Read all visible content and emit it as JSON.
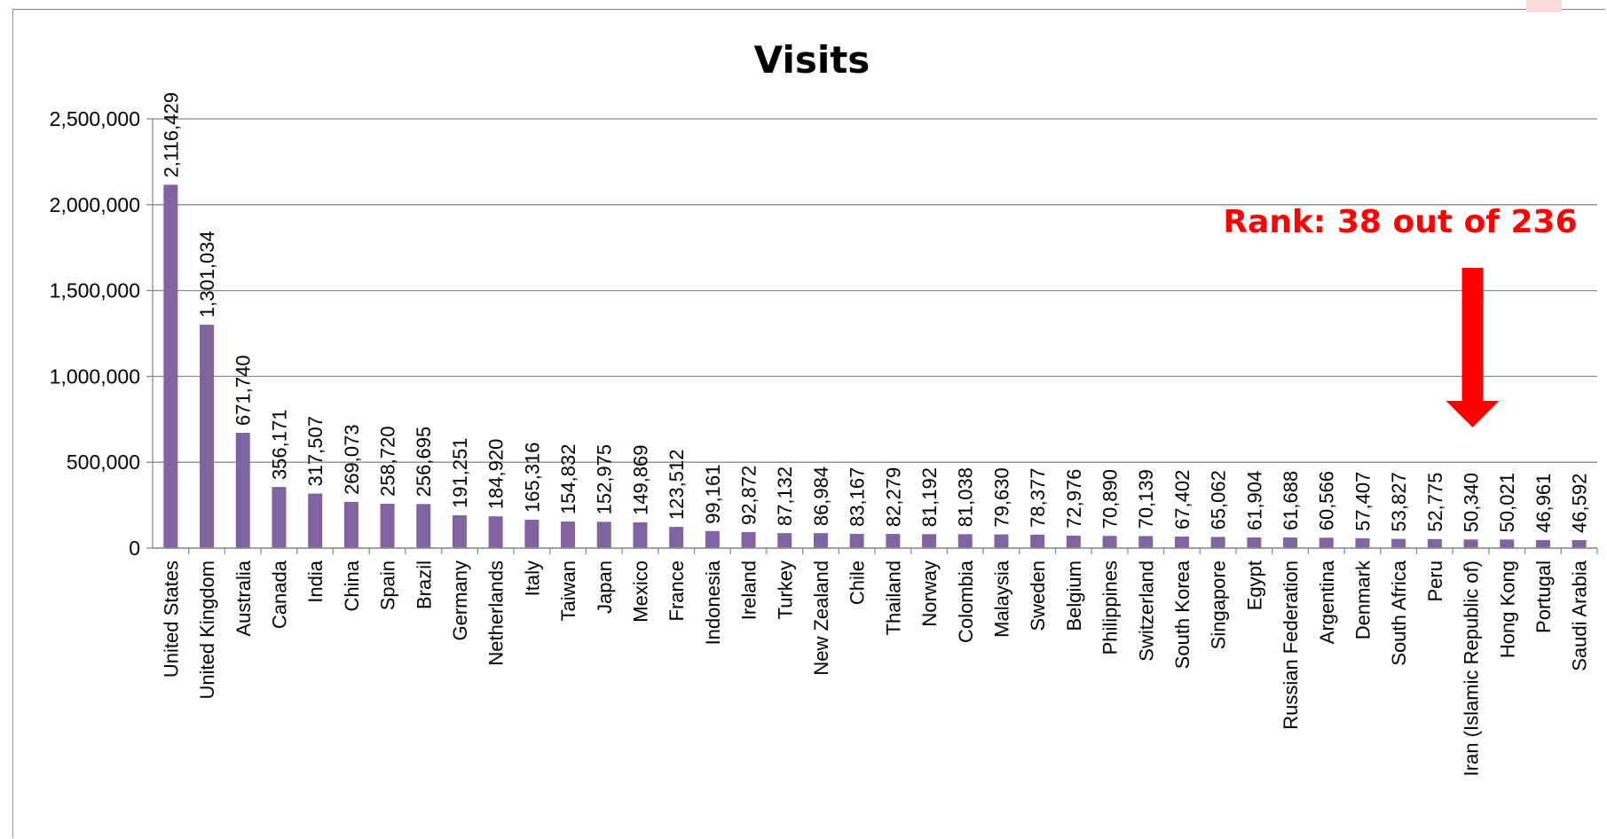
{
  "chart_data": {
    "type": "bar",
    "title": "Visits",
    "xlabel": "",
    "ylabel": "",
    "ylim": [
      0,
      2500000
    ],
    "yticks": [
      0,
      500000,
      1000000,
      1500000,
      2000000,
      2500000
    ],
    "ytick_labels": [
      "0",
      "500,000",
      "1,000,000",
      "1,500,000",
      "2,000,000",
      "2,500,000"
    ],
    "grid": true,
    "bar_color": "#8064a2",
    "categories": [
      "United States",
      "United Kingdom",
      "Australia",
      "Canada",
      "India",
      "China",
      "Spain",
      "Brazil",
      "Germany",
      "Netherlands",
      "Italy",
      "Taiwan",
      "Japan",
      "Mexico",
      "France",
      "Indonesia",
      "Ireland",
      "Turkey",
      "New Zealand",
      "Chile",
      "Thailand",
      "Norway",
      "Colombia",
      "Malaysia",
      "Sweden",
      "Belgium",
      "Philippines",
      "Switzerland",
      "South Korea",
      "Singapore",
      "Egypt",
      "Russian Federation",
      "Argentina",
      "Denmark",
      "South Africa",
      "Peru",
      "Iran (Islamic Republic of)",
      "Hong Kong",
      "Portugal",
      "Saudi Arabia"
    ],
    "values": [
      2116429,
      1301034,
      671740,
      356171,
      317507,
      269073,
      258720,
      256695,
      191251,
      184920,
      165316,
      154832,
      152975,
      149869,
      123512,
      99161,
      92872,
      87132,
      86984,
      83167,
      82279,
      81192,
      81038,
      79630,
      78377,
      72976,
      70890,
      70139,
      67402,
      65062,
      61904,
      61688,
      60566,
      57407,
      53827,
      52775,
      50340,
      50021,
      46961,
      46592
    ],
    "data_labels": [
      "2,116,429",
      "1,301,034",
      "671,740",
      "356,171",
      "317,507",
      "269,073",
      "258,720",
      "256,695",
      "191,251",
      "184,920",
      "165,316",
      "154,832",
      "152,975",
      "149,869",
      "123,512",
      "99,161",
      "92,872",
      "87,132",
      "86,984",
      "83,167",
      "82,279",
      "81,192",
      "81,038",
      "79,630",
      "78,377",
      "72,976",
      "70,890",
      "70,139",
      "67,402",
      "65,062",
      "61,904",
      "61,688",
      "60,566",
      "57,407",
      "53,827",
      "52,775",
      "50,340",
      "50,021",
      "46,961",
      "46,592"
    ],
    "annotation": {
      "text": "Rank: 38  out of 236",
      "color": "#ff0000",
      "points_to": "Iran (Islamic Republic of)"
    }
  }
}
